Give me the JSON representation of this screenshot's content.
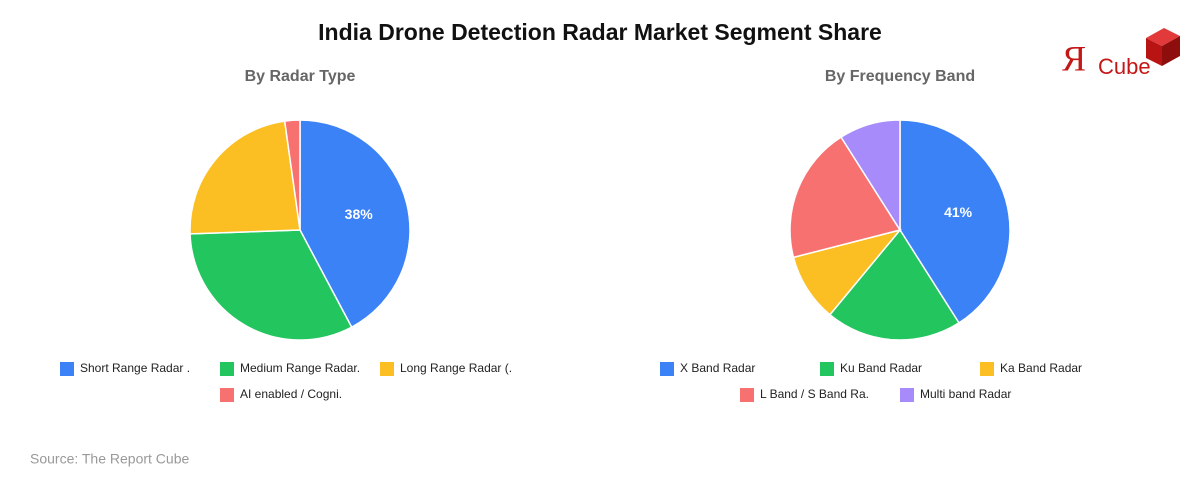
{
  "title": "India Drone Detection Radar Market Segment Share",
  "logo": {
    "mark": "Я",
    "text": "Cube"
  },
  "source": "Source: The Report Cube",
  "chart_data": [
    {
      "type": "pie",
      "title": "By Radar Type",
      "categories": [
        "Short Range Radar .",
        "Medium Range Radar.",
        "Long Range Radar (.",
        "AI enabled / Cogni."
      ],
      "values": [
        38,
        29,
        21,
        2
      ],
      "value_labels": [
        "38%",
        null,
        null,
        null
      ],
      "colors": [
        "#3b82f6",
        "#22c55e",
        "#fbbf24",
        "#f87171"
      ]
    },
    {
      "type": "pie",
      "title": "By Frequency Band",
      "categories": [
        "X Band Radar",
        "Ku Band Radar",
        "Ka Band Radar",
        "L Band / S Band Ra.",
        "Multi band Radar"
      ],
      "values": [
        41,
        20,
        10,
        20,
        9
      ],
      "value_labels": [
        "41%",
        null,
        null,
        null,
        null
      ],
      "colors": [
        "#3b82f6",
        "#22c55e",
        "#fbbf24",
        "#f87171",
        "#a78bfa"
      ]
    }
  ]
}
